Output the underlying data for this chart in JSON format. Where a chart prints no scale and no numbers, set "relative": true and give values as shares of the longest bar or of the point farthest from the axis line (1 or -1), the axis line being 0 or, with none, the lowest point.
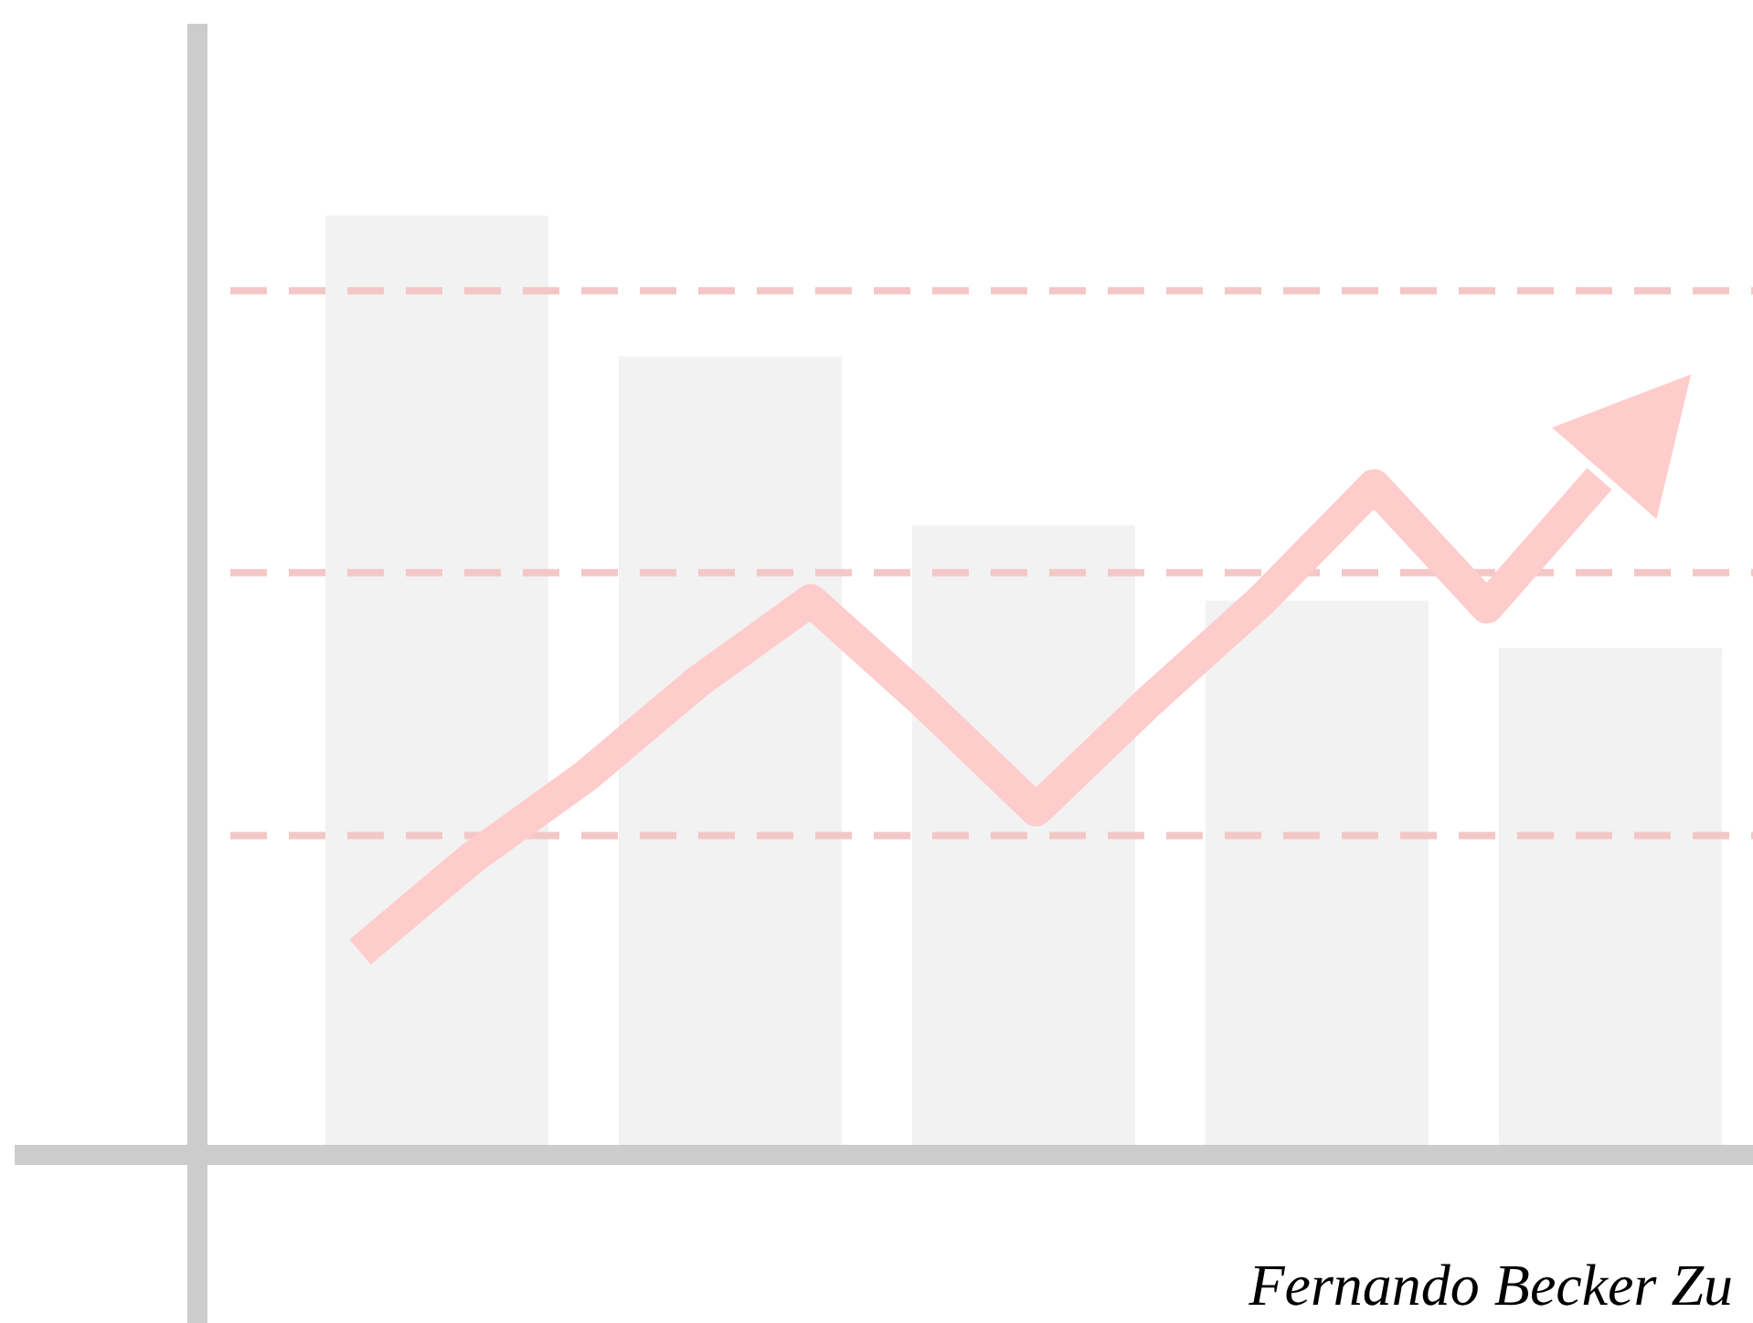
{
  "chart_data": [
    {
      "type": "bar",
      "relative": true,
      "categories": [
        null,
        null,
        null,
        null,
        null
      ],
      "values": [
        1,
        0.85,
        0.67,
        0.59,
        0.54
      ],
      "color": "#f2f2f2",
      "ref_lines": [
        {
          "axis": "y",
          "value": 0.92,
          "color": "#f4c7c7",
          "line_style": "dashed"
        },
        {
          "axis": "y",
          "value": 0.62,
          "color": "#f4c7c7",
          "line_style": "dashed"
        },
        {
          "axis": "y",
          "value": 0.34,
          "color": "#f4c7c7",
          "line_style": "dashed"
        }
      ],
      "annotations": [
        "Fernando Becker Zu"
      ]
    },
    {
      "type": "line",
      "relative": true,
      "categories": [
        null,
        null,
        null,
        null,
        null,
        null,
        null,
        null,
        null,
        null,
        null,
        null
      ],
      "values": [
        0.3,
        0.44,
        0.56,
        0.7,
        0.82,
        0.67,
        0.51,
        0.67,
        0.82,
        0.99,
        0.81,
        1
      ],
      "color": "#ffcccc"
    }
  ]
}
